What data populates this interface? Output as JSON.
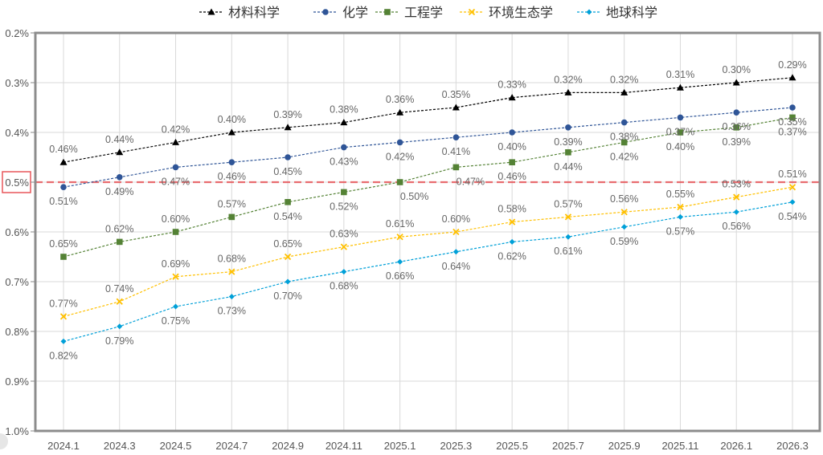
{
  "chart_data": {
    "type": "line",
    "title": "",
    "xlabel": "",
    "ylabel": "",
    "y_reversed": true,
    "ylim": [
      0.2,
      1.0
    ],
    "yticks": [
      "0.2%",
      "0.3%",
      "0.4%",
      "0.5%",
      "0.6%",
      "0.7%",
      "0.8%",
      "0.9%",
      "1.0%"
    ],
    "ytick_values": [
      0.2,
      0.3,
      0.4,
      0.5,
      0.6,
      0.7,
      0.8,
      0.9,
      1.0
    ],
    "grid": true,
    "legend_position": "top-center",
    "categories": [
      "2024.1",
      "2024.3",
      "2024.5",
      "2024.7",
      "2024.9",
      "2024.11",
      "2025.1",
      "2025.3",
      "2025.5",
      "2025.7",
      "2025.9",
      "2025.11",
      "2026.1",
      "2026.3"
    ],
    "reference_line": {
      "value": 0.5,
      "label": "0.5%",
      "color": "#e8565a",
      "style": "dashed",
      "highlighted_tick": true
    },
    "series": [
      {
        "name": "材料科学",
        "color": "#000000",
        "marker": "triangle",
        "label_position": "above",
        "values": [
          0.46,
          0.44,
          0.42,
          0.4,
          0.39,
          0.38,
          0.36,
          0.35,
          0.33,
          0.32,
          0.32,
          0.31,
          0.3,
          0.29
        ]
      },
      {
        "name": "化学",
        "color": "#2f5597",
        "marker": "circle",
        "label_position": "below",
        "values": [
          0.51,
          0.49,
          0.47,
          0.46,
          0.45,
          0.43,
          0.42,
          0.41,
          0.4,
          0.39,
          0.38,
          0.37,
          0.36,
          0.35
        ]
      },
      {
        "name": "工程学",
        "color": "#548235",
        "marker": "square",
        "label_position": "mixed",
        "values": [
          0.65,
          0.62,
          0.6,
          0.57,
          0.54,
          0.52,
          0.5,
          0.47,
          0.46,
          0.44,
          0.42,
          0.4,
          0.39,
          0.37
        ]
      },
      {
        "name": "环境生态学",
        "color": "#ffc000",
        "marker": "x",
        "label_position": "above",
        "values": [
          0.77,
          0.74,
          0.69,
          0.68,
          0.65,
          0.63,
          0.61,
          0.6,
          0.58,
          0.57,
          0.56,
          0.55,
          0.53,
          0.51
        ]
      },
      {
        "name": "地球科学",
        "color": "#00a0d8",
        "marker": "diamond",
        "label_position": "below",
        "values": [
          0.82,
          0.79,
          0.75,
          0.73,
          0.7,
          0.68,
          0.66,
          0.64,
          0.62,
          0.61,
          0.59,
          0.57,
          0.56,
          0.54
        ]
      }
    ],
    "data_label_format": "{v}%"
  },
  "legend": {
    "items": [
      "材料科学",
      "化学",
      "工程学",
      "环境生态学",
      "地球科学"
    ]
  }
}
